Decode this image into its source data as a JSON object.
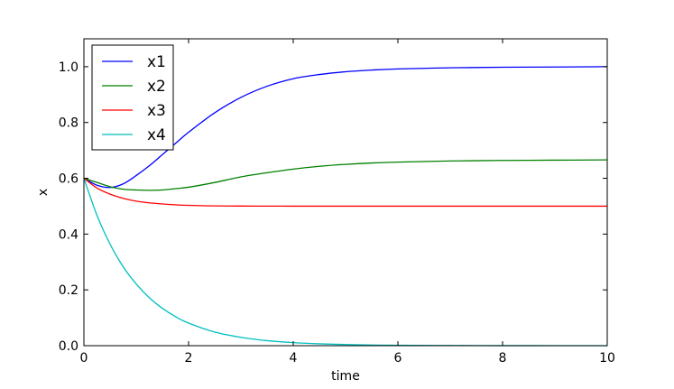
{
  "chart_data": {
    "type": "line",
    "xlabel": "time",
    "ylabel": "x",
    "xlim": [
      0,
      10
    ],
    "ylim": [
      0.0,
      1.1
    ],
    "xticks": [
      0,
      2,
      4,
      6,
      8,
      10
    ],
    "xtick_labels": [
      "0",
      "2",
      "4",
      "6",
      "8",
      "10"
    ],
    "yticks": [
      0.0,
      0.2,
      0.4,
      0.6,
      0.8,
      1.0
    ],
    "ytick_labels": [
      "0.0",
      "0.2",
      "0.4",
      "0.6",
      "0.8",
      "1.0"
    ],
    "grid": false,
    "legend_position": "top-left",
    "x": [
      0,
      0.25,
      0.5,
      0.75,
      1.0,
      1.25,
      1.5,
      1.75,
      2.0,
      2.5,
      3.0,
      3.5,
      4.0,
      4.5,
      5.0,
      5.5,
      6.0,
      7.0,
      8.0,
      9.0,
      10.0
    ],
    "series": [
      {
        "name": "x1",
        "color": "#0000ff",
        "values": [
          0.6,
          0.575,
          0.567,
          0.58,
          0.61,
          0.645,
          0.685,
          0.725,
          0.765,
          0.835,
          0.89,
          0.93,
          0.957,
          0.972,
          0.982,
          0.988,
          0.992,
          0.996,
          0.998,
          0.999,
          1.0
        ]
      },
      {
        "name": "x2",
        "color": "#008000",
        "values": [
          0.6,
          0.585,
          0.57,
          0.561,
          0.558,
          0.557,
          0.558,
          0.563,
          0.568,
          0.585,
          0.605,
          0.62,
          0.633,
          0.643,
          0.65,
          0.655,
          0.658,
          0.662,
          0.664,
          0.665,
          0.666
        ]
      },
      {
        "name": "x3",
        "color": "#ff0000",
        "values": [
          0.6,
          0.565,
          0.543,
          0.528,
          0.518,
          0.512,
          0.508,
          0.505,
          0.503,
          0.501,
          0.5005,
          0.5002,
          0.5001,
          0.5,
          0.5,
          0.5,
          0.5,
          0.5,
          0.5,
          0.5,
          0.5
        ]
      },
      {
        "name": "x4",
        "color": "#00bfbf",
        "values": [
          0.6,
          0.467,
          0.364,
          0.283,
          0.221,
          0.172,
          0.134,
          0.104,
          0.081,
          0.049,
          0.03,
          0.018,
          0.011,
          0.0067,
          0.0041,
          0.0025,
          0.0015,
          0.0006,
          0.0002,
          0.0001,
          0.0
        ]
      }
    ]
  }
}
